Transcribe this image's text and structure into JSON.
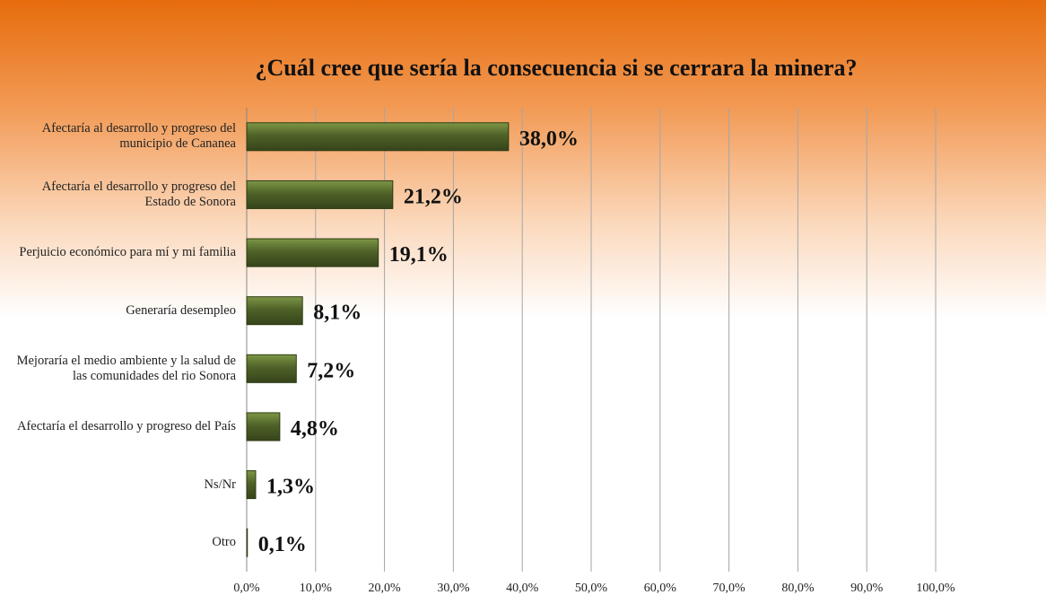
{
  "chart_data": {
    "type": "hbar",
    "title": "¿Cuál cree que sería la consecuencia si se cerrara la minera?",
    "categories": [
      "Afectaría al desarrollo y progreso del municipio de Cananea",
      "Afectaría el desarrollo y progreso del Estado de Sonora",
      "Perjuicio económico para mí y mi familia",
      "Generaría desempleo",
      "Mejoraría el medio ambiente y la salud de las comunidades del rio Sonora",
      "Afectaría el desarrollo y progreso del País",
      "Ns/Nr",
      "Otro"
    ],
    "values": [
      38.0,
      21.2,
      19.1,
      8.1,
      7.2,
      4.8,
      1.3,
      0.1
    ],
    "value_labels": [
      "38,0%",
      "21,2%",
      "19,1%",
      "8,1%",
      "7,2%",
      "4,8%",
      "1,3%",
      "0,1%"
    ],
    "color": "#4f6228",
    "xlim": [
      0,
      100
    ],
    "xticks": [
      {
        "value": 0,
        "label": "0,0%"
      },
      {
        "value": 10,
        "label": "10,0%"
      },
      {
        "value": 20,
        "label": "20,0%"
      },
      {
        "value": 30,
        "label": "30,0%"
      },
      {
        "value": 40,
        "label": "40,0%"
      },
      {
        "value": 50,
        "label": "50,0%"
      },
      {
        "value": 60,
        "label": "60,0%"
      },
      {
        "value": 70,
        "label": "70,0%"
      },
      {
        "value": 80,
        "label": "80,0%"
      },
      {
        "value": 90,
        "label": "90,0%"
      },
      {
        "value": 100,
        "label": "100,0%"
      }
    ],
    "grid": true
  }
}
